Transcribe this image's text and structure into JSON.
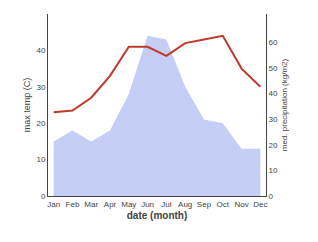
{
  "chart_data": {
    "type": "line",
    "categories": [
      "Jan",
      "Feb",
      "Mar",
      "Apr",
      "May",
      "Jun",
      "Jul",
      "Aug",
      "Sep",
      "Oct",
      "Nov",
      "Dec"
    ],
    "series": [
      {
        "type": "area",
        "color": "#c5cef5",
        "axis": "y",
        "values": [
          15,
          18,
          15,
          18,
          28,
          44,
          43,
          30,
          21,
          20,
          13,
          13
        ]
      },
      {
        "type": "line",
        "color": "#c0392b",
        "axis": "y",
        "values": [
          23,
          23.5,
          27,
          33,
          41,
          41,
          38.5,
          42,
          43,
          44,
          35,
          30
        ]
      }
    ],
    "xlabel": "date (month)",
    "ylabel": "max temp (C)",
    "y2label": "med. precipitation (kg/m2)",
    "ylim": [
      0,
      50
    ],
    "yticks": [
      0,
      10,
      20,
      30,
      40
    ],
    "y2lim": [
      0,
      71
    ],
    "y2ticks": [
      0,
      10,
      20,
      30,
      40,
      50,
      60
    ],
    "grid": false
  }
}
